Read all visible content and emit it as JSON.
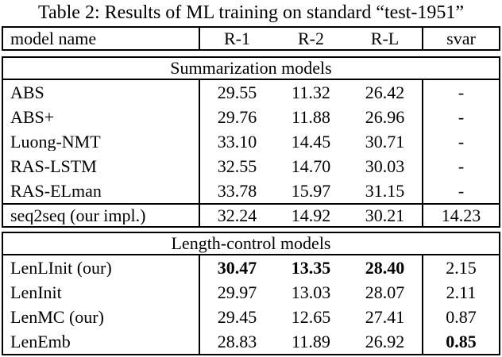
{
  "title": "Table 2: Results of ML training on standard “test-1951”",
  "colors": {
    "text": "#000000",
    "background": "#ffffff",
    "border": "#000000"
  },
  "table": {
    "header": {
      "model": "model name",
      "r1": "R-1",
      "r2": "R-2",
      "rl": "R-L",
      "svar": "svar"
    },
    "section1": {
      "label": "Summarization models",
      "rows": [
        {
          "model": "ABS",
          "r1": "29.55",
          "r2": "11.32",
          "rl": "26.42",
          "svar": "-"
        },
        {
          "model": "ABS+",
          "r1": "29.76",
          "r2": "11.88",
          "rl": "26.96",
          "svar": "-"
        },
        {
          "model": "Luong-NMT",
          "r1": "33.10",
          "r2": "14.45",
          "rl": "30.71",
          "svar": "-"
        },
        {
          "model": "RAS-LSTM",
          "r1": "32.55",
          "r2": "14.70",
          "rl": "30.03",
          "svar": "-"
        },
        {
          "model": "RAS-ELman",
          "r1": "33.78",
          "r2": "15.97",
          "rl": "31.15",
          "svar": "-"
        }
      ],
      "impl_row": {
        "model": "seq2seq (our impl.)",
        "r1": "32.24",
        "r2": "14.92",
        "rl": "30.21",
        "svar": "14.23"
      }
    },
    "section2": {
      "label": "Length-control models",
      "rows": [
        {
          "model": "LenLInit (our)",
          "r1": "30.47",
          "r2": "13.35",
          "rl": "28.40",
          "svar": "2.15",
          "r1_bold": true,
          "r2_bold": true,
          "rl_bold": true
        },
        {
          "model": "LenInit",
          "r1": "29.97",
          "r2": "13.03",
          "rl": "28.07",
          "svar": "2.11"
        },
        {
          "model": "LenMC (our)",
          "r1": "29.45",
          "r2": "12.65",
          "rl": "27.41",
          "svar": "0.87"
        },
        {
          "model": "LenEmb",
          "r1": "28.83",
          "r2": "11.89",
          "rl": "26.92",
          "svar": "0.85",
          "svar_bold": true
        }
      ]
    }
  }
}
